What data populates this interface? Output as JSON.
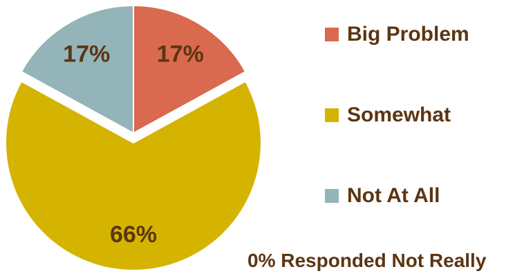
{
  "chart_data": {
    "type": "pie",
    "slices": [
      {
        "label": "Big Problem",
        "value": 17,
        "display": "17%",
        "color": "#d9694f"
      },
      {
        "label": "Somewhat",
        "value": 66,
        "display": "66%",
        "color": "#d4b400"
      },
      {
        "label": "Not At All",
        "value": 17,
        "display": "17%",
        "color": "#93b4b8"
      }
    ],
    "exploded": "Somewhat",
    "start_angle_deg": 0,
    "direction": "clockwise",
    "legend_placement": "right",
    "annotation": "0% Responded Not Really"
  }
}
